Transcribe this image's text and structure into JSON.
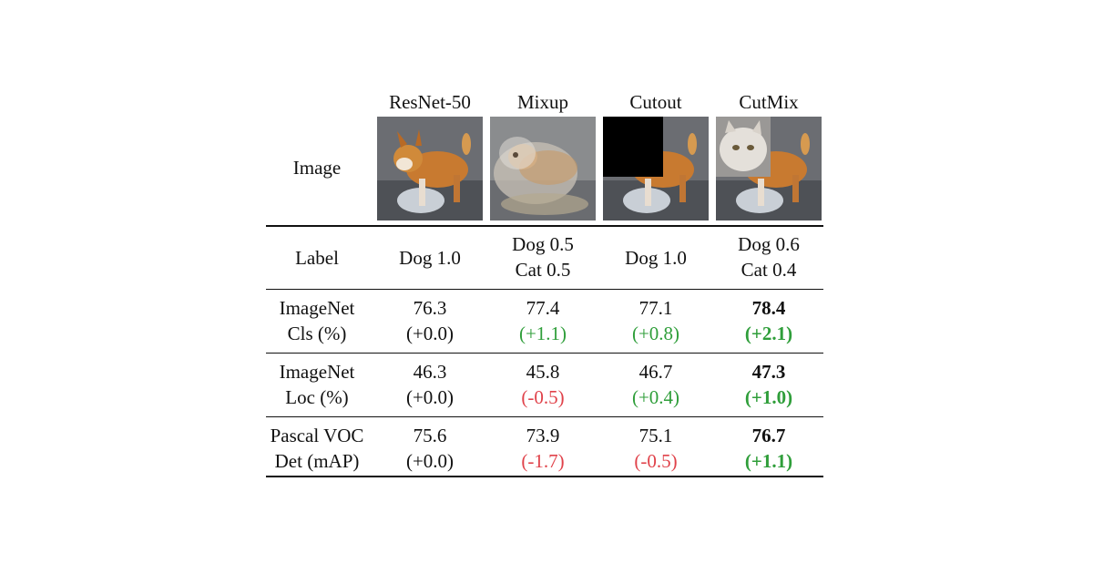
{
  "header": {
    "columns": [
      "ResNet-50",
      "Mixup",
      "Cutout",
      "CutMix"
    ],
    "image_row_label": "Image"
  },
  "rows": {
    "label": {
      "name": "Label",
      "cells": [
        [
          "Dog 1.0"
        ],
        [
          "Dog 0.5",
          "Cat 0.5"
        ],
        [
          "Dog 1.0"
        ],
        [
          "Dog 0.6",
          "Cat 0.4"
        ]
      ]
    },
    "cls": {
      "name": [
        "ImageNet",
        "Cls (%)"
      ],
      "values": [
        "76.3",
        "77.4",
        "77.1",
        "78.4"
      ],
      "deltas": [
        "(+0.0)",
        "(+1.1)",
        "(+0.8)",
        "(+2.1)"
      ]
    },
    "loc": {
      "name": [
        "ImageNet",
        "Loc (%)"
      ],
      "values": [
        "46.3",
        "45.8",
        "46.7",
        "47.3"
      ],
      "deltas": [
        "(+0.0)",
        "(-0.5)",
        "(+0.4)",
        "(+1.0)"
      ]
    },
    "det": {
      "name": [
        "Pascal VOC",
        "Det (mAP)"
      ],
      "values": [
        "75.6",
        "73.9",
        "75.1",
        "76.7"
      ],
      "deltas": [
        "(+0.0)",
        "(-1.7)",
        "(-0.5)",
        "(+1.1)"
      ]
    }
  },
  "colors": {
    "positive": "#2f9e3a",
    "negative": "#e0424a",
    "neutral": "#111111"
  }
}
